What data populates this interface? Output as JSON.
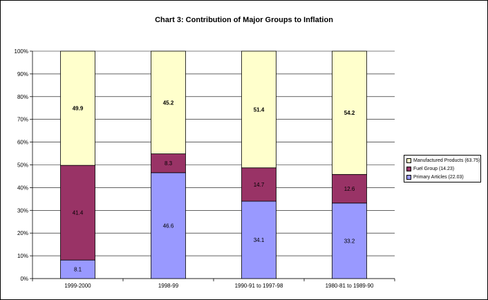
{
  "chart_data": {
    "type": "bar",
    "stacked": true,
    "percent_stacked": true,
    "title": "Chart 3: Contribution of Major Groups to Inflation",
    "categories": [
      "1999-2000",
      "1998-99",
      "1990-91 to 1997-98",
      "1980-81 to 1989-90"
    ],
    "series": [
      {
        "name": "Primary Articles (22.03)",
        "color": "#9999ff",
        "values": [
          8.1,
          46.6,
          34.1,
          33.2
        ],
        "labels": [
          "8.1",
          "46.6",
          "34.1",
          "33.2"
        ]
      },
      {
        "name": "Fuel Group (14.23)",
        "color": "#993366",
        "values": [
          41.4,
          8.3,
          14.7,
          12.6
        ],
        "labels": [
          "41.4",
          "8.3",
          "14.7",
          "12.6"
        ]
      },
      {
        "name": "Manufactured Products (63.75)",
        "color": "#ffffcc",
        "values": [
          49.9,
          45.2,
          51.4,
          54.2
        ],
        "labels": [
          "49.9",
          "45.2",
          "51.4",
          "54.2"
        ]
      }
    ],
    "ylim": [
      0,
      100
    ],
    "yticks": [
      "0%",
      "10%",
      "20%",
      "30%",
      "40%",
      "50%",
      "60%",
      "70%",
      "80%",
      "90%",
      "100%"
    ],
    "grid": true,
    "legend_position": "right",
    "legend_order": [
      "Manufactured Products (63.75)",
      "Fuel Group (14.23)",
      "Primary Articles (22.03)"
    ]
  }
}
